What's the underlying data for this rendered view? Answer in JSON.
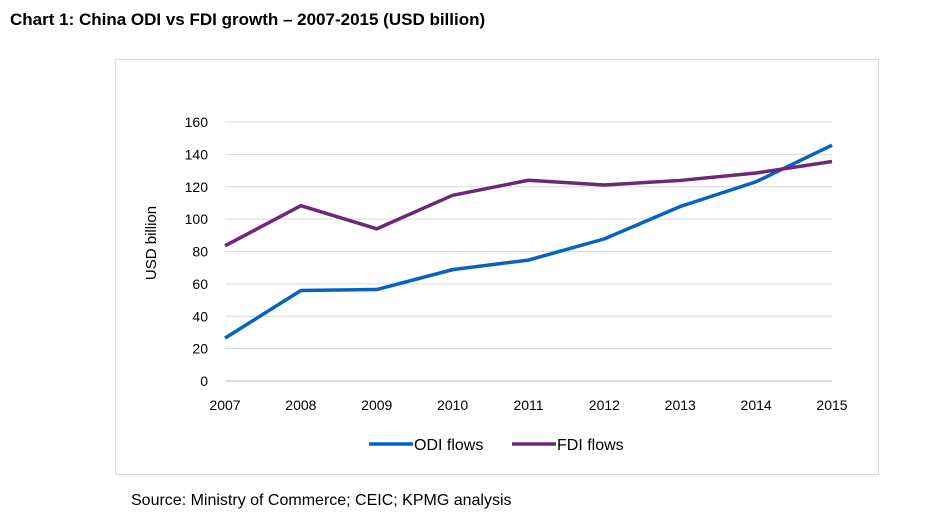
{
  "title": "Chart 1: China ODI vs FDI growth – 2007-2015 (USD billion)",
  "source": "Source: Ministry of Commerce; CEIC; KPMG analysis",
  "chart_data": {
    "type": "line",
    "title": "Chart 1: China ODI vs FDI growth – 2007-2015 (USD billion)",
    "xlabel": "",
    "ylabel": "USD billion",
    "ylim": [
      0,
      160
    ],
    "yticks": [
      0,
      20,
      40,
      60,
      80,
      100,
      120,
      140,
      160
    ],
    "x": [
      "2007",
      "2008",
      "2009",
      "2010",
      "2011",
      "2012",
      "2013",
      "2014",
      "2015"
    ],
    "grid": true,
    "legend": "bottom",
    "series": [
      {
        "name": "ODI flows",
        "color": "#0563C1",
        "values": [
          26.5,
          55.9,
          56.5,
          68.8,
          74.7,
          87.8,
          107.8,
          123.1,
          145.7
        ]
      },
      {
        "name": "FDI flows",
        "color": "#6F2878",
        "values": [
          83.5,
          108.3,
          94.0,
          114.7,
          124.0,
          121.1,
          123.9,
          128.5,
          135.6
        ]
      }
    ]
  }
}
